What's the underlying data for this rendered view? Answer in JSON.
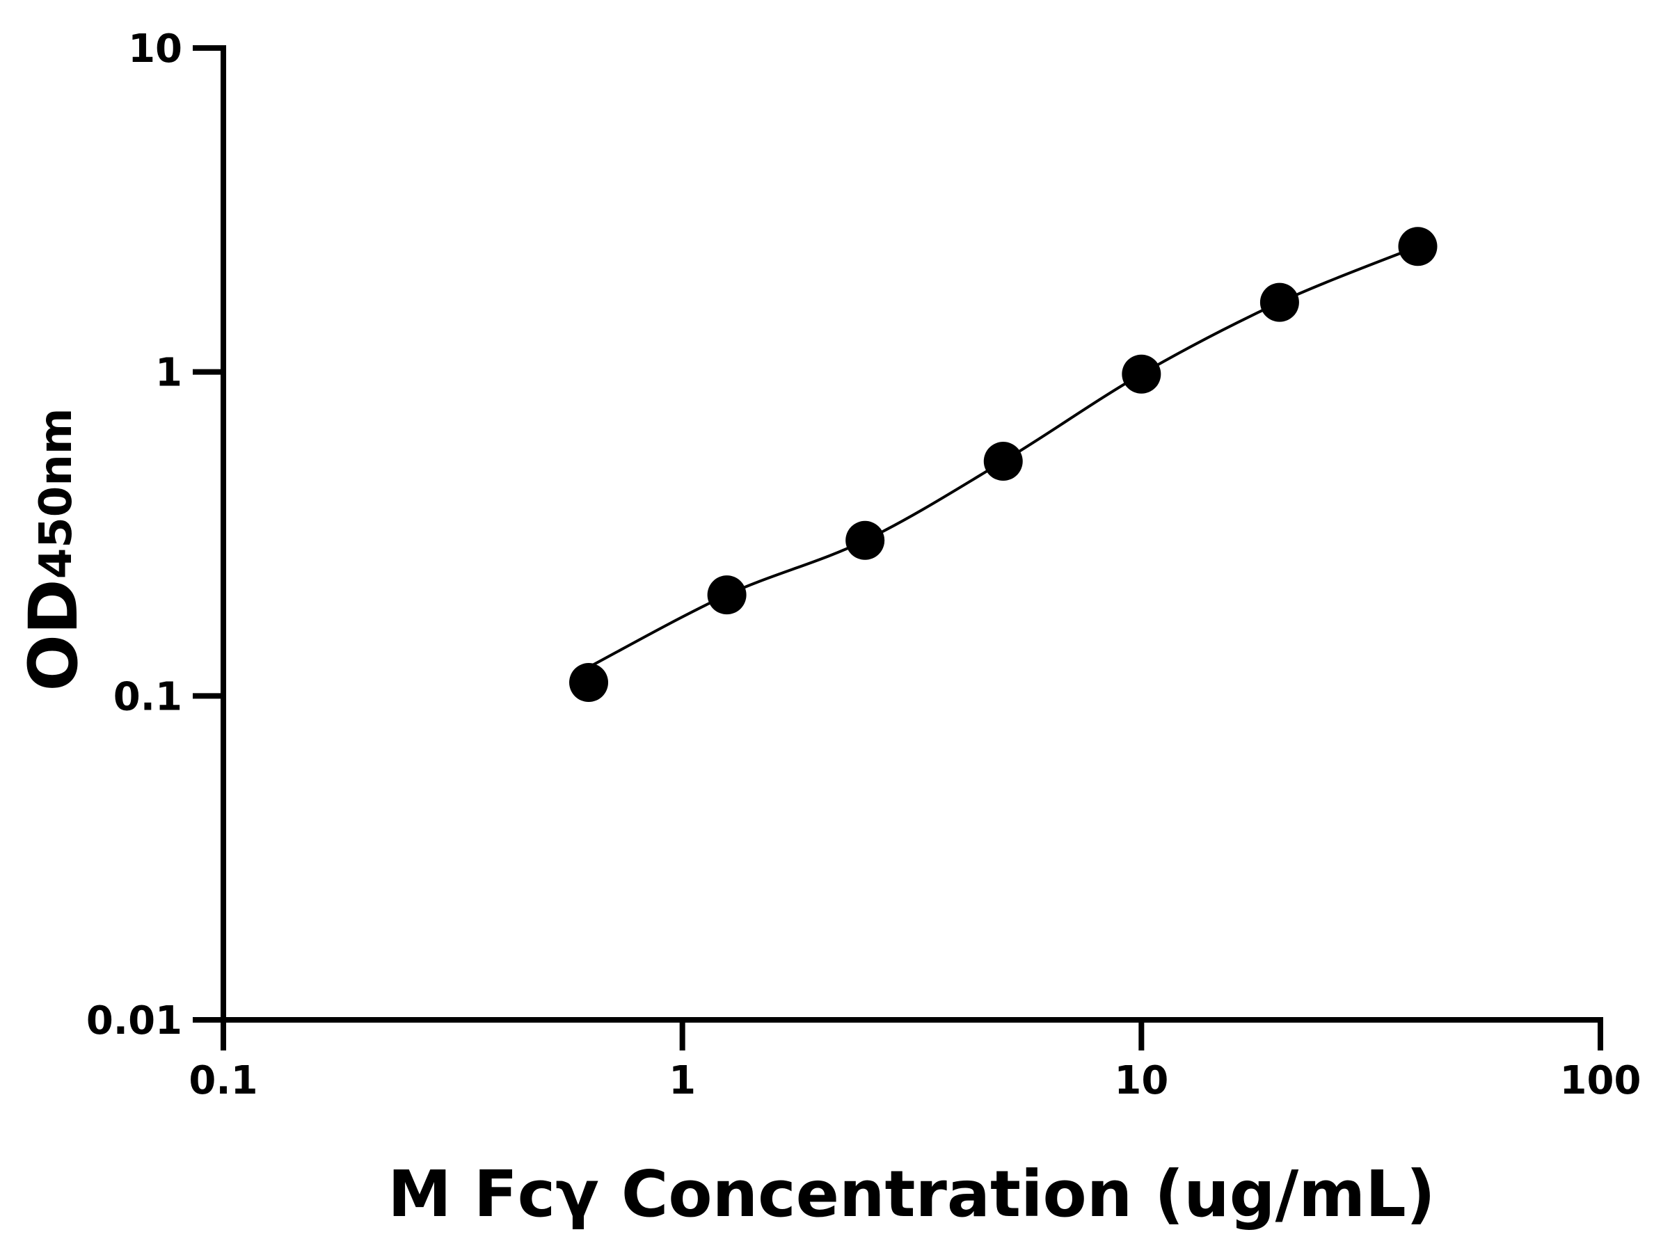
{
  "chart_data": {
    "type": "scatter",
    "title": "",
    "xlabel": "M Fcγ Concentration (ug/mL)",
    "ylabel_main": "OD",
    "ylabel_sub": "450nm",
    "x_scale": "log",
    "y_scale": "log",
    "xlim": [
      0.1,
      100
    ],
    "ylim": [
      0.01,
      10
    ],
    "x_ticks": [
      0.1,
      1,
      10,
      100
    ],
    "x_tick_labels": [
      "0.1",
      "1",
      "10",
      "100"
    ],
    "y_ticks": [
      0.01,
      0.1,
      1,
      10
    ],
    "y_tick_labels": [
      "0.01",
      "0.1",
      "1",
      "10"
    ],
    "grid": false,
    "legend": "none",
    "fit_curve": true,
    "series": [
      {
        "x": [
          0.625,
          1.25,
          2.5,
          5,
          10,
          20,
          40
        ],
        "y": [
          0.11,
          0.205,
          0.302,
          0.53,
          0.985,
          1.64,
          2.44
        ]
      }
    ],
    "colors": {
      "marker": "#000000",
      "line": "#000000",
      "axis": "#000000"
    }
  }
}
